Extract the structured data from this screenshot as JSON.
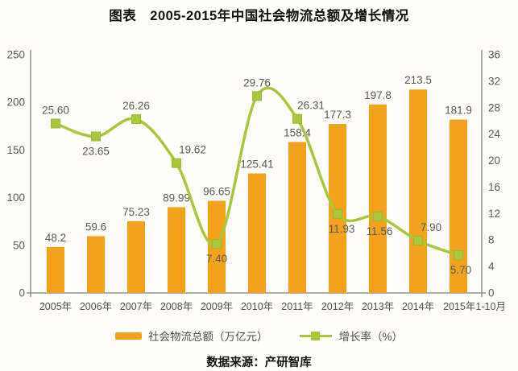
{
  "title": "图表　2005-2015年中国社会物流总额及增长情况",
  "source": "数据来源：产研智库",
  "legend": {
    "items": [
      {
        "label": "社会物流总额（万亿元）",
        "swatch": "bar-swatch",
        "color": "#F2A21D"
      },
      {
        "label": "增长率（%）",
        "swatch": "line-swatch",
        "color": "#A8C73C"
      }
    ]
  },
  "colors": {
    "bar": "#F2A21D",
    "line": "#A8C73C",
    "marker_stroke": "#9CBA2F",
    "axis_line": "#909090",
    "tick_label": "#595959",
    "x_label": "#4f4f4f",
    "data_label": "#595959"
  },
  "chart_data": {
    "type": "bar",
    "subtype": "bar+line combo, dual axis",
    "title": "图表　2005-2015年中国社会物流总额及增长情况",
    "categories": [
      "2005年",
      "2006年",
      "2007年",
      "2008年",
      "2009年",
      "2010年",
      "2011年",
      "2012年",
      "2013年",
      "2014年",
      "2015年1-10月"
    ],
    "series": [
      {
        "name": "社会物流总额（万亿元）",
        "type": "bar",
        "axis": "left",
        "color": "#F2A21D",
        "values": [
          48.2,
          59.6,
          75.23,
          89.99,
          96.65,
          125.41,
          158.4,
          177.3,
          197.8,
          213.5,
          181.9
        ],
        "labels": [
          "48.2",
          "59.6",
          "75.23",
          "89.99",
          "96.65",
          "125.41",
          "158.4",
          "177.3",
          "197.8",
          "213.5",
          "181.9"
        ]
      },
      {
        "name": "增长率（%）",
        "type": "line",
        "axis": "right",
        "color": "#A8C73C",
        "values": [
          25.6,
          23.65,
          26.26,
          19.62,
          7.4,
          29.76,
          26.31,
          11.93,
          11.56,
          7.9,
          5.7
        ],
        "labels": [
          "25.60",
          "23.65",
          "26.26",
          "19.62",
          "7.40",
          "29.76",
          "26.31",
          "11.93",
          "11.56",
          "7.90",
          "5.70"
        ],
        "label_positions": [
          "above",
          "below",
          "above",
          "above",
          "below",
          "above",
          "above",
          "below",
          "below",
          "above",
          "below"
        ],
        "label_dx": [
          0,
          0,
          0,
          20,
          0,
          0,
          17,
          5,
          2,
          16,
          3
        ]
      }
    ],
    "left_axis": {
      "min": 0,
      "max": 250,
      "step": 50,
      "ticks": [
        250,
        200,
        150,
        100,
        50,
        0
      ]
    },
    "right_axis": {
      "min": 0,
      "max": 36,
      "step": 4,
      "ticks": [
        36,
        32,
        28,
        24,
        20,
        16,
        12,
        8,
        4,
        0
      ]
    },
    "grid": false,
    "legend_position": "bottom",
    "xlabel": "",
    "ylabel_left": "社会物流总额（万亿元）",
    "ylabel_right": "增长率（%）"
  }
}
